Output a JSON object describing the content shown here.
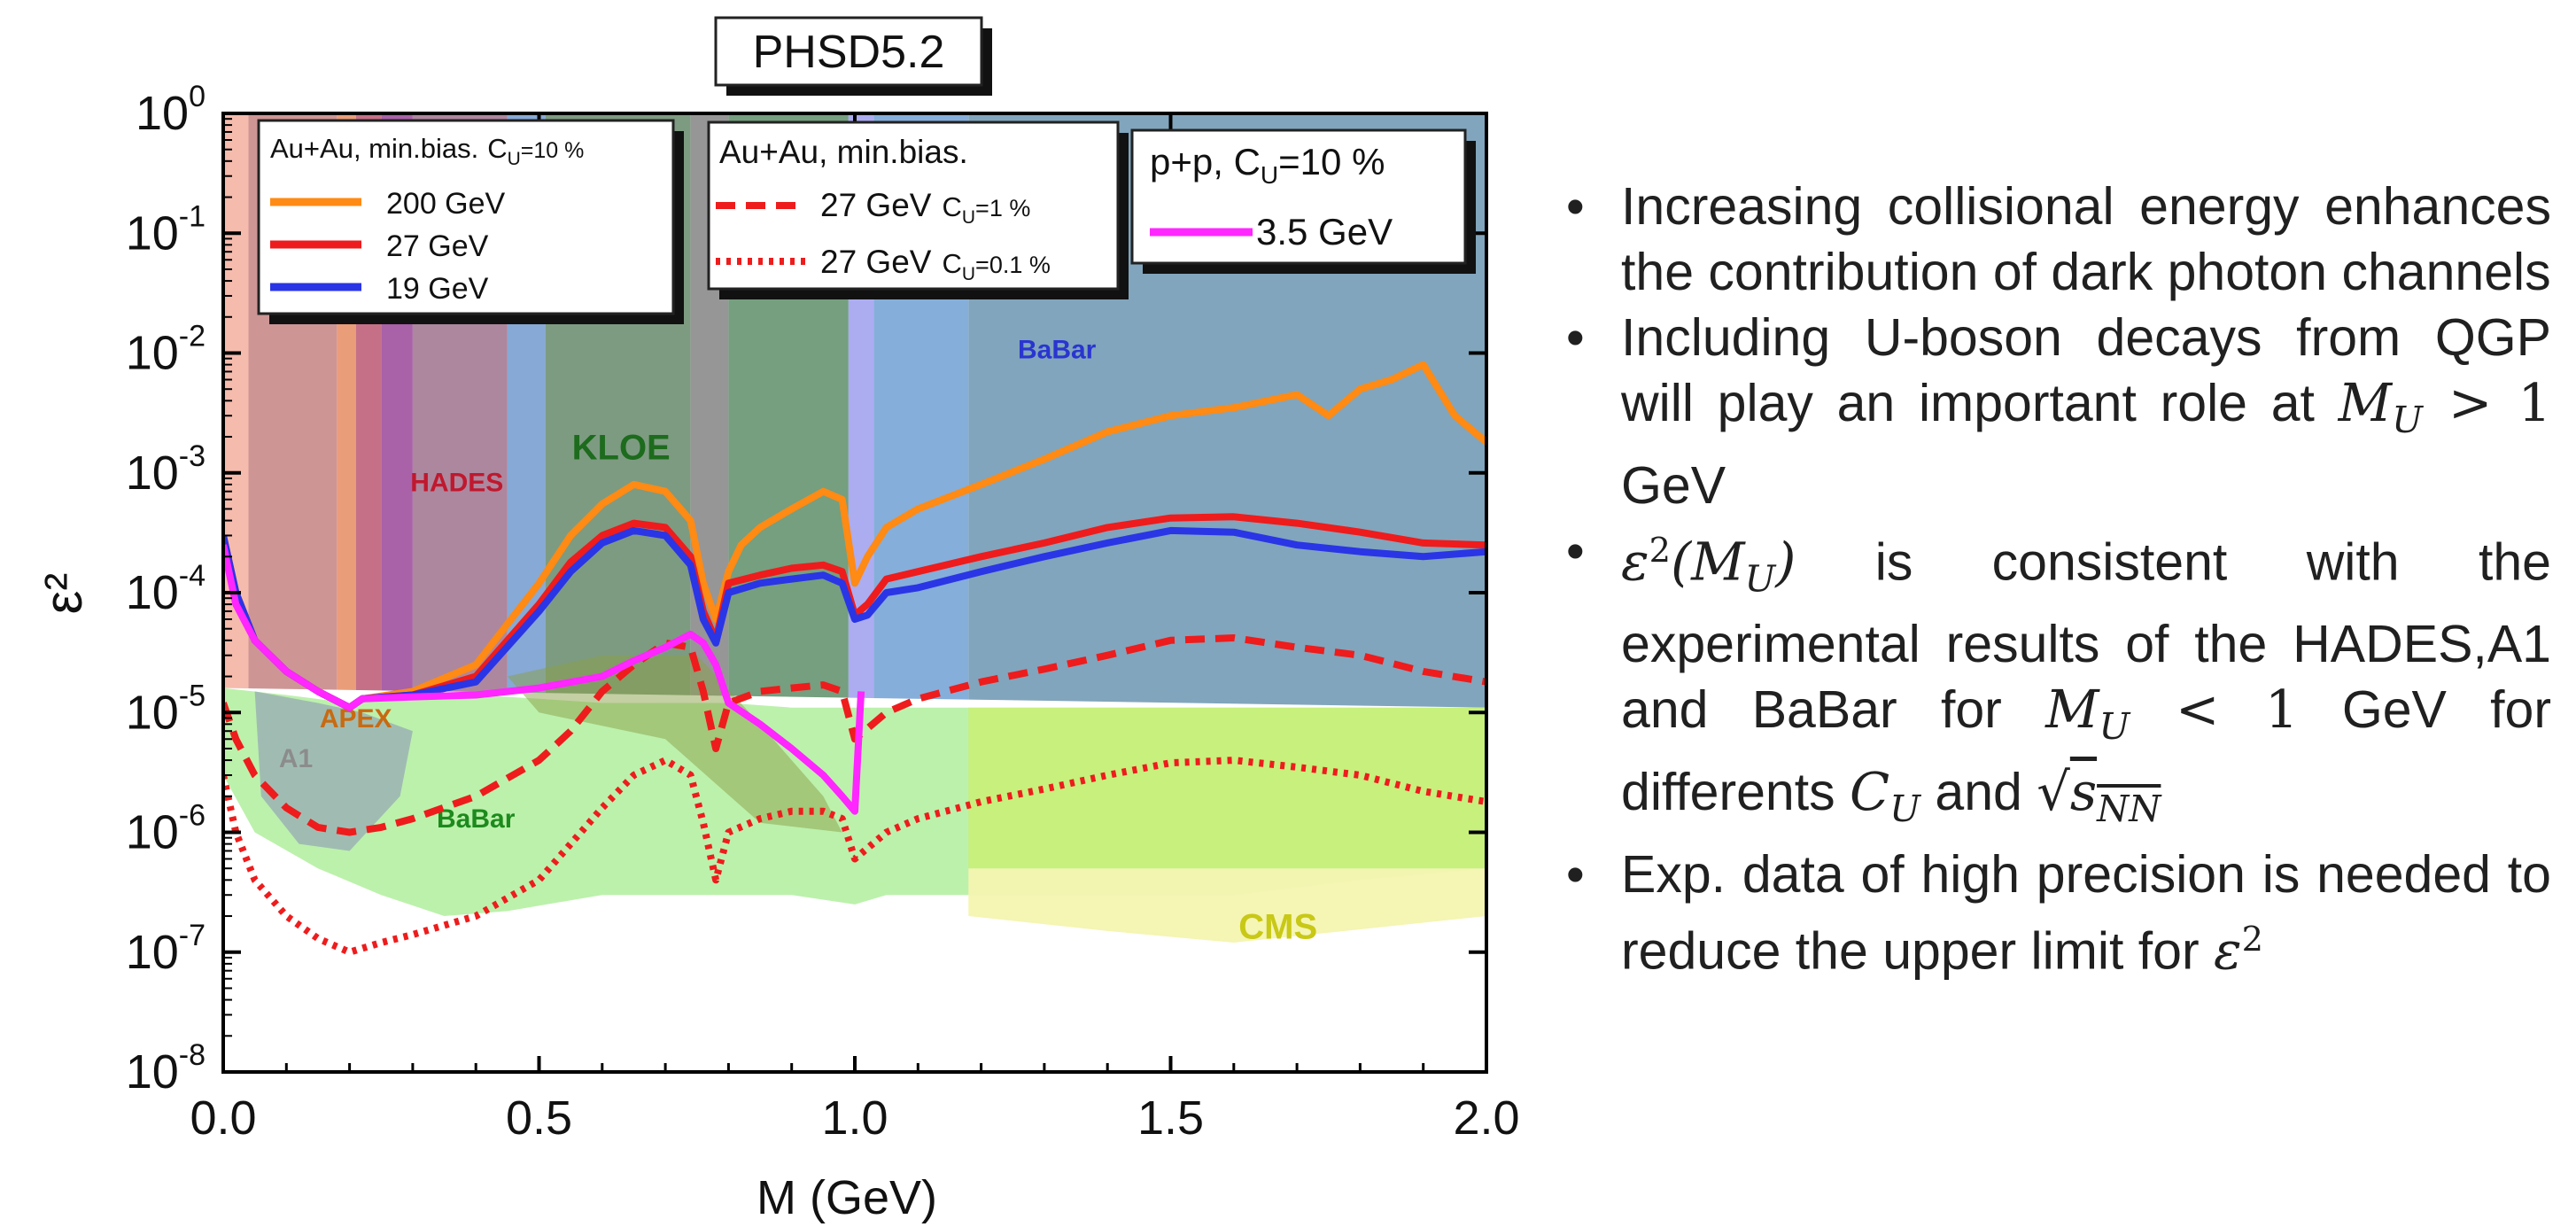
{
  "chart_data": {
    "type": "line",
    "title": "PHSD5.2",
    "xlabel": "M (GeV)",
    "ylabel": "ε²",
    "xlim": [
      0,
      2
    ],
    "ylim_log10": [
      -8,
      0
    ],
    "log_y": true,
    "x_ticks": [
      "0.0",
      "0.5",
      "1.0",
      "1.5",
      "2.0"
    ],
    "y_ticks": [
      {
        "base": "10",
        "exp": "0"
      },
      {
        "base": "10",
        "exp": "-1"
      },
      {
        "base": "10",
        "exp": "-2"
      },
      {
        "base": "10",
        "exp": "-3"
      },
      {
        "base": "10",
        "exp": "-4"
      },
      {
        "base": "10",
        "exp": "-5"
      },
      {
        "base": "10",
        "exp": "-6"
      },
      {
        "base": "10",
        "exp": "-7"
      },
      {
        "base": "10",
        "exp": "-8"
      }
    ],
    "exclusion_labels": [
      {
        "text": "HADES",
        "x": 0.37,
        "y": 0.0007,
        "color": "#c0182e"
      },
      {
        "text": "KLOE",
        "x": 0.63,
        "y": 0.0013,
        "color": "#1d6b1d"
      },
      {
        "text": "BaBar",
        "x": 1.32,
        "y": 0.009,
        "color": "#2a35d0"
      },
      {
        "text": "APEX",
        "x": 0.21,
        "y": 7.5e-06,
        "color": "#c86a12"
      },
      {
        "text": "A1",
        "x": 0.115,
        "y": 3.5e-06,
        "color": "#8c8c8c"
      },
      {
        "text": "BaBar",
        "x": 0.4,
        "y": 1.1e-06,
        "color": "#1d8a1d"
      },
      {
        "text": "CMS",
        "x": 1.67,
        "y": 1.3e-07,
        "color": "#c8c816"
      }
    ],
    "legends": [
      {
        "title": "Au+Au, min.bias.",
        "note": "C",
        "note_sub": "U",
        "note_tail": "=10 %",
        "entries": [
          {
            "label": "200 GeV",
            "color": "#ff8a14",
            "style": "solid"
          },
          {
            "label": "27 GeV",
            "color": "#ee1c1c",
            "style": "solid"
          },
          {
            "label": "19 GeV",
            "color": "#2a35e6",
            "style": "solid"
          }
        ]
      },
      {
        "title": "Au+Au, min.bias.",
        "entries": [
          {
            "label": "27 GeV",
            "cu": "C",
            "cu_sub": "U",
            "cu_tail": "=1 %",
            "color": "#ee1c1c",
            "style": "dashed"
          },
          {
            "label": "27 GeV",
            "cu": "C",
            "cu_sub": "U",
            "cu_tail": "=0.1 %",
            "color": "#ee1c1c",
            "style": "dotted"
          }
        ]
      },
      {
        "title": "p+p,  C",
        "title_sub": "U",
        "title_tail": "=10 %",
        "entries": [
          {
            "label": "3.5 GeV",
            "color": "#ff26ff",
            "style": "solid"
          }
        ]
      }
    ],
    "series": [
      {
        "name": "200 GeV",
        "color": "#ff8a14",
        "style": "solid",
        "x": [
          0.0,
          0.02,
          0.05,
          0.1,
          0.15,
          0.2,
          0.22,
          0.3,
          0.4,
          0.5,
          0.55,
          0.6,
          0.65,
          0.7,
          0.74,
          0.76,
          0.78,
          0.8,
          0.82,
          0.85,
          0.9,
          0.95,
          0.98,
          1.0,
          1.02,
          1.05,
          1.1,
          1.2,
          1.3,
          1.4,
          1.5,
          1.6,
          1.7,
          1.75,
          1.8,
          1.85,
          1.9,
          1.95,
          2.0
        ],
        "y": [
          0.0003,
          0.0001,
          4e-05,
          2.2e-05,
          1.5e-05,
          1.1e-05,
          1.3e-05,
          1.5e-05,
          2.5e-05,
          0.00012,
          0.0003,
          0.00055,
          0.0008,
          0.0007,
          0.0004,
          0.00012,
          6e-05,
          0.00015,
          0.00025,
          0.00035,
          0.0005,
          0.0007,
          0.0006,
          0.00012,
          0.0002,
          0.00035,
          0.0005,
          0.0008,
          0.0013,
          0.0022,
          0.003,
          0.0035,
          0.0045,
          0.003,
          0.005,
          0.006,
          0.008,
          0.003,
          0.0018
        ]
      },
      {
        "name": "27 GeV",
        "color": "#ee1c1c",
        "style": "solid",
        "x": [
          0.0,
          0.02,
          0.05,
          0.1,
          0.15,
          0.2,
          0.22,
          0.3,
          0.4,
          0.5,
          0.55,
          0.6,
          0.65,
          0.7,
          0.74,
          0.76,
          0.78,
          0.8,
          0.85,
          0.9,
          0.95,
          0.98,
          1.0,
          1.02,
          1.05,
          1.1,
          1.2,
          1.3,
          1.4,
          1.5,
          1.6,
          1.7,
          1.8,
          1.9,
          2.0
        ],
        "y": [
          0.0003,
          0.0001,
          4e-05,
          2.2e-05,
          1.5e-05,
          1.1e-05,
          1.3e-05,
          1.4e-05,
          2e-05,
          8e-05,
          0.00018,
          0.0003,
          0.00038,
          0.00035,
          0.0002,
          7e-05,
          4e-05,
          0.00012,
          0.00014,
          0.00016,
          0.00017,
          0.00015,
          6.5e-05,
          8e-05,
          0.00013,
          0.00015,
          0.0002,
          0.00026,
          0.00035,
          0.00042,
          0.00043,
          0.00038,
          0.00032,
          0.00026,
          0.00025
        ]
      },
      {
        "name": "19 GeV",
        "color": "#2a35e6",
        "style": "solid",
        "x": [
          0.0,
          0.02,
          0.05,
          0.1,
          0.15,
          0.2,
          0.22,
          0.3,
          0.4,
          0.5,
          0.55,
          0.6,
          0.65,
          0.7,
          0.74,
          0.76,
          0.78,
          0.8,
          0.85,
          0.9,
          0.95,
          0.98,
          1.0,
          1.02,
          1.05,
          1.1,
          1.2,
          1.3,
          1.4,
          1.5,
          1.6,
          1.7,
          1.8,
          1.9,
          2.0
        ],
        "y": [
          0.0003,
          0.0001,
          4e-05,
          2.2e-05,
          1.5e-05,
          1.1e-05,
          1.3e-05,
          1.4e-05,
          1.8e-05,
          7e-05,
          0.00015,
          0.00026,
          0.00033,
          0.0003,
          0.00017,
          6e-05,
          3.8e-05,
          0.0001,
          0.00012,
          0.00013,
          0.00014,
          0.00012,
          6e-05,
          6.5e-05,
          0.0001,
          0.00011,
          0.00015,
          0.0002,
          0.00026,
          0.00033,
          0.00032,
          0.00025,
          0.00022,
          0.0002,
          0.00022
        ]
      },
      {
        "name": "27 GeV C_U=1 %",
        "color": "#ee1c1c",
        "style": "dashed",
        "x": [
          0.0,
          0.02,
          0.05,
          0.1,
          0.15,
          0.2,
          0.25,
          0.3,
          0.4,
          0.5,
          0.55,
          0.6,
          0.65,
          0.7,
          0.74,
          0.76,
          0.78,
          0.8,
          0.85,
          0.9,
          0.95,
          0.98,
          1.0,
          1.05,
          1.1,
          1.2,
          1.3,
          1.4,
          1.5,
          1.6,
          1.7,
          1.8,
          1.9,
          2.0
        ],
        "y": [
          1.2e-05,
          6e-06,
          3e-06,
          1.6e-06,
          1.1e-06,
          1e-06,
          1.1e-06,
          1.3e-06,
          2e-06,
          4e-06,
          7e-06,
          1.5e-05,
          2.5e-05,
          3.8e-05,
          3.5e-05,
          1.5e-05,
          5e-06,
          1.2e-05,
          1.5e-05,
          1.6e-05,
          1.7e-05,
          1.5e-05,
          6e-06,
          1e-05,
          1.3e-05,
          1.8e-05,
          2.3e-05,
          3e-05,
          4e-05,
          4.2e-05,
          3.5e-05,
          3e-05,
          2.2e-05,
          1.8e-05
        ]
      },
      {
        "name": "27 GeV C_U=0.1 %",
        "color": "#ee1c1c",
        "style": "dotted",
        "x": [
          0.0,
          0.02,
          0.05,
          0.1,
          0.15,
          0.2,
          0.25,
          0.3,
          0.4,
          0.5,
          0.55,
          0.6,
          0.65,
          0.7,
          0.74,
          0.76,
          0.78,
          0.8,
          0.85,
          0.9,
          0.95,
          0.98,
          1.0,
          1.05,
          1.1,
          1.2,
          1.3,
          1.4,
          1.5,
          1.6,
          1.7,
          1.8,
          1.9,
          2.0
        ],
        "y": [
          3e-06,
          1e-06,
          4e-07,
          2e-07,
          1.3e-07,
          1e-07,
          1.2e-07,
          1.4e-07,
          2e-07,
          4e-07,
          8e-07,
          1.6e-06,
          3e-06,
          4e-06,
          3e-06,
          1.2e-06,
          4e-07,
          1e-06,
          1.3e-06,
          1.5e-06,
          1.5e-06,
          1.3e-06,
          6e-07,
          1e-06,
          1.3e-06,
          1.8e-06,
          2.3e-06,
          3e-06,
          3.8e-06,
          4e-06,
          3.5e-06,
          3e-06,
          2.2e-06,
          1.8e-06
        ]
      },
      {
        "name": "3.5 GeV",
        "color": "#ff26ff",
        "style": "solid",
        "x": [
          0.0,
          0.02,
          0.05,
          0.1,
          0.15,
          0.2,
          0.22,
          0.3,
          0.4,
          0.5,
          0.6,
          0.65,
          0.7,
          0.74,
          0.76,
          0.78,
          0.8,
          0.85,
          0.9,
          0.95,
          0.98,
          1.0,
          1.01
        ],
        "y": [
          0.00025,
          8e-05,
          4e-05,
          2.2e-05,
          1.5e-05,
          1.1e-05,
          1.3e-05,
          1.35e-05,
          1.4e-05,
          1.6e-05,
          2e-05,
          2.7e-05,
          3.5e-05,
          4.5e-05,
          3.8e-05,
          2.5e-05,
          1.2e-05,
          8e-06,
          5e-06,
          3e-06,
          2e-06,
          1.5e-06,
          1.5e-05
        ]
      }
    ]
  },
  "bullets": [
    {
      "type": "text",
      "text": "Increasing collisional energy enhances the contribution of dark photon channels"
    },
    {
      "type": "mu_gt",
      "before": "Including U-boson decays from QGP will play an important role at ",
      "math": "M",
      "sub": "U",
      "rel": " > 1",
      "after": " GeV"
    },
    {
      "type": "eps",
      "eps": "ε",
      "eps_sup": "2",
      "open": "(M",
      "sub": "U",
      "close": ")",
      "mid": " is consistent with the experimental results of the HADES,A1 and BaBar for ",
      "m2": "M",
      "m2_sub": "U",
      "rel": " < 1",
      "mid2": " GeV for differents ",
      "c": "C",
      "c_sub": "U",
      "and": " and ",
      "sqrt": "√",
      "s": "s",
      "s_sub": "NN"
    },
    {
      "type": "eps_end",
      "before": "Exp. data of high precision is needed to reduce the upper limit for ",
      "eps": "ε",
      "eps_sup": "2"
    }
  ]
}
